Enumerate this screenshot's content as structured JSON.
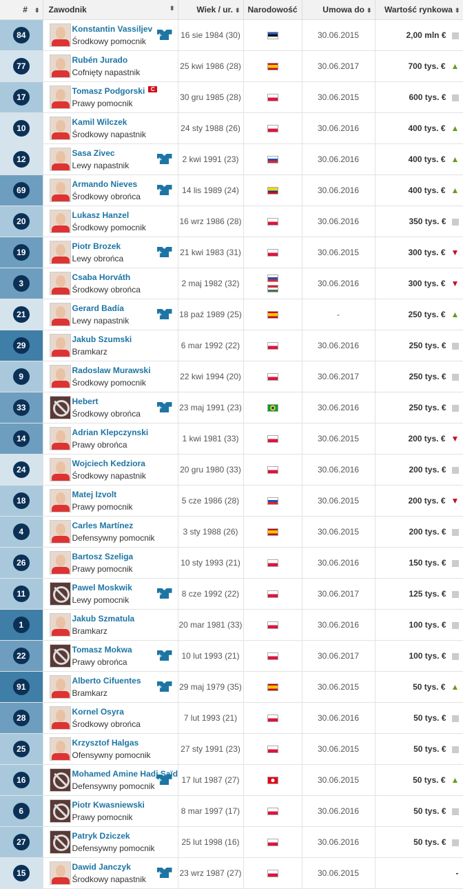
{
  "header": {
    "num": "#",
    "player": "Zawodnik",
    "age": "Wiek / ur.",
    "nat": "Narodowość",
    "contract": "Umowa do",
    "value": "Wartość rynkowa"
  },
  "colors": {
    "GK": "#3f7ea6",
    "DEF": "#6d9ec0",
    "MID": "#a9c8dc",
    "FWD": "#d5e3ed",
    "link": "#1d75a3",
    "up": "#6a9a1f",
    "down": "#c1121c"
  },
  "rows": [
    {
      "num": "84",
      "name": "Konstantin Vassiljev",
      "pos": "Środkowy pomocnik",
      "grp": "MID",
      "jersey": true,
      "born": "16 sie 1984 (30)",
      "flags": [
        "estonia"
      ],
      "contract": "30.06.2015",
      "value": "2,00 mln €",
      "trend": "neutral"
    },
    {
      "num": "77",
      "name": "Rubén Jurado",
      "pos": "Cofnięty napastnik",
      "grp": "FWD",
      "born": "25 kwi 1986 (28)",
      "flags": [
        "spain"
      ],
      "contract": "30.06.2017",
      "value": "700 tys. €",
      "trend": "up"
    },
    {
      "num": "17",
      "name": "Tomasz Podgorski",
      "captain": "C",
      "pos": "Prawy pomocnik",
      "grp": "MID",
      "born": "30 gru 1985 (28)",
      "flags": [
        "poland"
      ],
      "contract": "30.06.2015",
      "value": "600 tys. €",
      "trend": "neutral"
    },
    {
      "num": "10",
      "name": "Kamil Wilczek",
      "pos": "Środkowy napastnik",
      "grp": "FWD",
      "born": "24 sty 1988 (26)",
      "flags": [
        "poland"
      ],
      "contract": "30.06.2016",
      "value": "400 tys. €",
      "trend": "up"
    },
    {
      "num": "12",
      "name": "Sasa Zivec",
      "pos": "Lewy napastnik",
      "grp": "FWD",
      "jersey": true,
      "born": "2 kwi 1991 (23)",
      "flags": [
        "slovenia"
      ],
      "contract": "30.06.2016",
      "value": "400 tys. €",
      "trend": "up"
    },
    {
      "num": "69",
      "name": "Armando Nieves",
      "pos": "Środkowy obrońca",
      "grp": "DEF",
      "jersey": true,
      "born": "14 lis 1989 (24)",
      "flags": [
        "colombia"
      ],
      "contract": "30.06.2016",
      "value": "400 tys. €",
      "trend": "up"
    },
    {
      "num": "20",
      "name": "Lukasz Hanzel",
      "pos": "Środkowy pomocnik",
      "grp": "MID",
      "born": "16 wrz 1986 (28)",
      "flags": [
        "poland"
      ],
      "contract": "30.06.2016",
      "value": "350 tys. €",
      "trend": "neutral"
    },
    {
      "num": "19",
      "name": "Piotr Brozek",
      "pos": "Lewy obrońca",
      "grp": "DEF",
      "jersey": true,
      "born": "21 kwi 1983 (31)",
      "flags": [
        "poland"
      ],
      "contract": "30.06.2015",
      "value": "300 tys. €",
      "trend": "down"
    },
    {
      "num": "3",
      "name": "Csaba Horváth",
      "pos": "Środkowy obrońca",
      "grp": "DEF",
      "born": "2 maj 1982 (32)",
      "flags": [
        "slovakia",
        "hungary"
      ],
      "contract": "30.06.2016",
      "value": "300 tys. €",
      "trend": "down"
    },
    {
      "num": "21",
      "name": "Gerard Badía",
      "pos": "Lewy napastnik",
      "grp": "FWD",
      "jersey": true,
      "born": "18 paź 1989 (25)",
      "flags": [
        "spain"
      ],
      "contract": "-",
      "value": "250 tys. €",
      "trend": "up"
    },
    {
      "num": "29",
      "name": "Jakub Szumski",
      "pos": "Bramkarz",
      "grp": "GK",
      "born": "6 mar 1992 (22)",
      "flags": [
        "poland"
      ],
      "contract": "30.06.2016",
      "value": "250 tys. €",
      "trend": "neutral"
    },
    {
      "num": "9",
      "name": "Radoslaw Murawski",
      "pos": "Środkowy pomocnik",
      "grp": "MID",
      "born": "22 kwi 1994 (20)",
      "flags": [
        "poland"
      ],
      "contract": "30.06.2017",
      "value": "250 tys. €",
      "trend": "neutral"
    },
    {
      "num": "33",
      "name": "Hebert",
      "pos": "Środkowy obrońca",
      "grp": "DEF",
      "jersey": true,
      "nophoto": true,
      "born": "23 maj 1991 (23)",
      "flags": [
        "brazil"
      ],
      "contract": "30.06.2016",
      "value": "250 tys. €",
      "trend": "neutral"
    },
    {
      "num": "14",
      "name": "Adrian Klepczynski",
      "pos": "Prawy obrońca",
      "grp": "DEF",
      "born": "1 kwi 1981 (33)",
      "flags": [
        "poland"
      ],
      "contract": "30.06.2015",
      "value": "200 tys. €",
      "trend": "down"
    },
    {
      "num": "24",
      "name": "Wojciech Kedziora",
      "pos": "Środkowy napastnik",
      "grp": "FWD",
      "born": "20 gru 1980 (33)",
      "flags": [
        "poland"
      ],
      "contract": "30.06.2016",
      "value": "200 tys. €",
      "trend": "neutral"
    },
    {
      "num": "18",
      "name": "Matej Izvolt",
      "pos": "Prawy pomocnik",
      "grp": "MID",
      "born": "5 cze 1986 (28)",
      "flags": [
        "slovakia"
      ],
      "contract": "30.06.2015",
      "value": "200 tys. €",
      "trend": "down"
    },
    {
      "num": "4",
      "name": "Carles Martínez",
      "pos": "Defensywny pomocnik",
      "grp": "MID",
      "born": "3 sty 1988 (26)",
      "flags": [
        "spain"
      ],
      "contract": "30.06.2015",
      "value": "200 tys. €",
      "trend": "neutral"
    },
    {
      "num": "26",
      "name": "Bartosz Szeliga",
      "pos": "Prawy pomocnik",
      "grp": "MID",
      "born": "10 sty 1993 (21)",
      "flags": [
        "poland"
      ],
      "contract": "30.06.2016",
      "value": "150 tys. €",
      "trend": "neutral"
    },
    {
      "num": "11",
      "name": "Pawel Moskwik",
      "pos": "Lewy pomocnik",
      "grp": "MID",
      "jersey": true,
      "nophoto": true,
      "born": "8 cze 1992 (22)",
      "flags": [
        "poland"
      ],
      "contract": "30.06.2017",
      "value": "125 tys. €",
      "trend": "neutral"
    },
    {
      "num": "1",
      "name": "Jakub Szmatula",
      "pos": "Bramkarz",
      "grp": "GK",
      "born": "20 mar 1981 (33)",
      "flags": [
        "poland"
      ],
      "contract": "30.06.2016",
      "value": "100 tys. €",
      "trend": "neutral"
    },
    {
      "num": "22",
      "name": "Tomasz Mokwa",
      "pos": "Prawy obrońca",
      "grp": "DEF",
      "jersey": true,
      "nophoto": true,
      "born": "10 lut 1993 (21)",
      "flags": [
        "poland"
      ],
      "contract": "30.06.2017",
      "value": "100 tys. €",
      "trend": "neutral"
    },
    {
      "num": "91",
      "name": "Alberto Cifuentes",
      "pos": "Bramkarz",
      "grp": "GK",
      "jersey": true,
      "born": "29 maj 1979 (35)",
      "flags": [
        "spain"
      ],
      "contract": "30.06.2015",
      "value": "50 tys. €",
      "trend": "up"
    },
    {
      "num": "28",
      "name": "Kornel Osyra",
      "pos": "Środkowy obrońca",
      "grp": "DEF",
      "born": "7 lut 1993 (21)",
      "flags": [
        "poland"
      ],
      "contract": "30.06.2016",
      "value": "50 tys. €",
      "trend": "neutral"
    },
    {
      "num": "25",
      "name": "Krzysztof Halgas",
      "pos": "Ofensywny pomocnik",
      "grp": "MID",
      "born": "27 sty 1991 (23)",
      "flags": [
        "poland"
      ],
      "contract": "30.06.2015",
      "value": "50 tys. €",
      "trend": "neutral"
    },
    {
      "num": "16",
      "name": "Mohamed Amine Hadj Saïd",
      "pos": "Defensywny pomocnik",
      "grp": "MID",
      "jersey": true,
      "nophoto": true,
      "born": "17 lut 1987 (27)",
      "flags": [
        "tunisia"
      ],
      "contract": "30.06.2015",
      "value": "50 tys. €",
      "trend": "up"
    },
    {
      "num": "6",
      "name": "Piotr Kwasniewski",
      "pos": "Prawy pomocnik",
      "grp": "MID",
      "nophoto": true,
      "born": "8 mar 1997 (17)",
      "flags": [
        "poland"
      ],
      "contract": "30.06.2016",
      "value": "50 tys. €",
      "trend": "neutral"
    },
    {
      "num": "27",
      "name": "Patryk Dziczek",
      "pos": "Defensywny pomocnik",
      "grp": "MID",
      "nophoto": true,
      "born": "25 lut 1998 (16)",
      "flags": [
        "poland"
      ],
      "contract": "30.06.2016",
      "value": "50 tys. €",
      "trend": "neutral"
    },
    {
      "num": "15",
      "name": "Dawid Janczyk",
      "pos": "Środkowy napastnik",
      "grp": "FWD",
      "jersey": true,
      "born": "23 wrz 1987 (27)",
      "flags": [
        "poland"
      ],
      "contract": "30.06.2015",
      "value": "-",
      "trend": "none"
    }
  ]
}
